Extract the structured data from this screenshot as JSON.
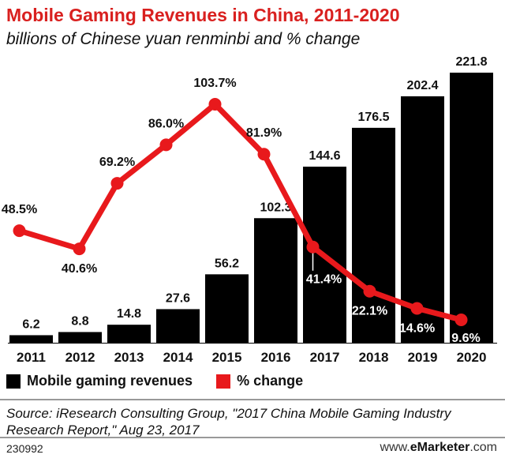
{
  "header": {
    "title": "Mobile Gaming Revenues in China, 2011-2020",
    "subtitle": "billions of Chinese yuan renminbi and % change"
  },
  "chart_data": {
    "type": "bar",
    "title": "Mobile Gaming Revenues in China, 2011-2020",
    "subtitle": "billions of Chinese yuan renminbi and % change",
    "categories": [
      "2011",
      "2012",
      "2013",
      "2014",
      "2015",
      "2016",
      "2017",
      "2018",
      "2019",
      "2020"
    ],
    "series": [
      {
        "name": "Mobile gaming revenues",
        "type": "bar",
        "color": "#000000",
        "values": [
          6.2,
          8.8,
          14.8,
          27.6,
          56.2,
          102.3,
          144.6,
          176.5,
          202.4,
          221.8
        ],
        "labels": [
          "6.2",
          "8.8",
          "14.8",
          "27.6",
          "56.2",
          "102.3",
          "144.6",
          "176.5",
          "202.4",
          "221.8"
        ],
        "ylim": [
          0,
          230
        ]
      },
      {
        "name": "% change",
        "type": "line",
        "color": "#e8191c",
        "values": [
          48.5,
          40.6,
          69.2,
          86.0,
          103.7,
          81.9,
          41.4,
          22.1,
          14.6,
          9.6
        ],
        "labels": [
          "48.5%",
          "40.6%",
          "69.2%",
          "86.0%",
          "103.7%",
          "81.9%",
          "41.4%",
          "22.1%",
          "14.6%",
          "9.6%"
        ],
        "ylim": [
          0,
          120
        ]
      }
    ],
    "grid": false,
    "legend": "bottom-left"
  },
  "legend": {
    "items": [
      {
        "label": "Mobile gaming revenues",
        "color": "#000000"
      },
      {
        "label": "% change",
        "color": "#e8191c"
      }
    ]
  },
  "footer": {
    "source": "Source: iResearch Consulting Group, \"2017 China Mobile Gaming Industry Research Report,\" Aug 23, 2017",
    "id": "230992",
    "brand_prefix": "www.",
    "brand_name": "eMarketer",
    "brand_suffix": ".com"
  }
}
